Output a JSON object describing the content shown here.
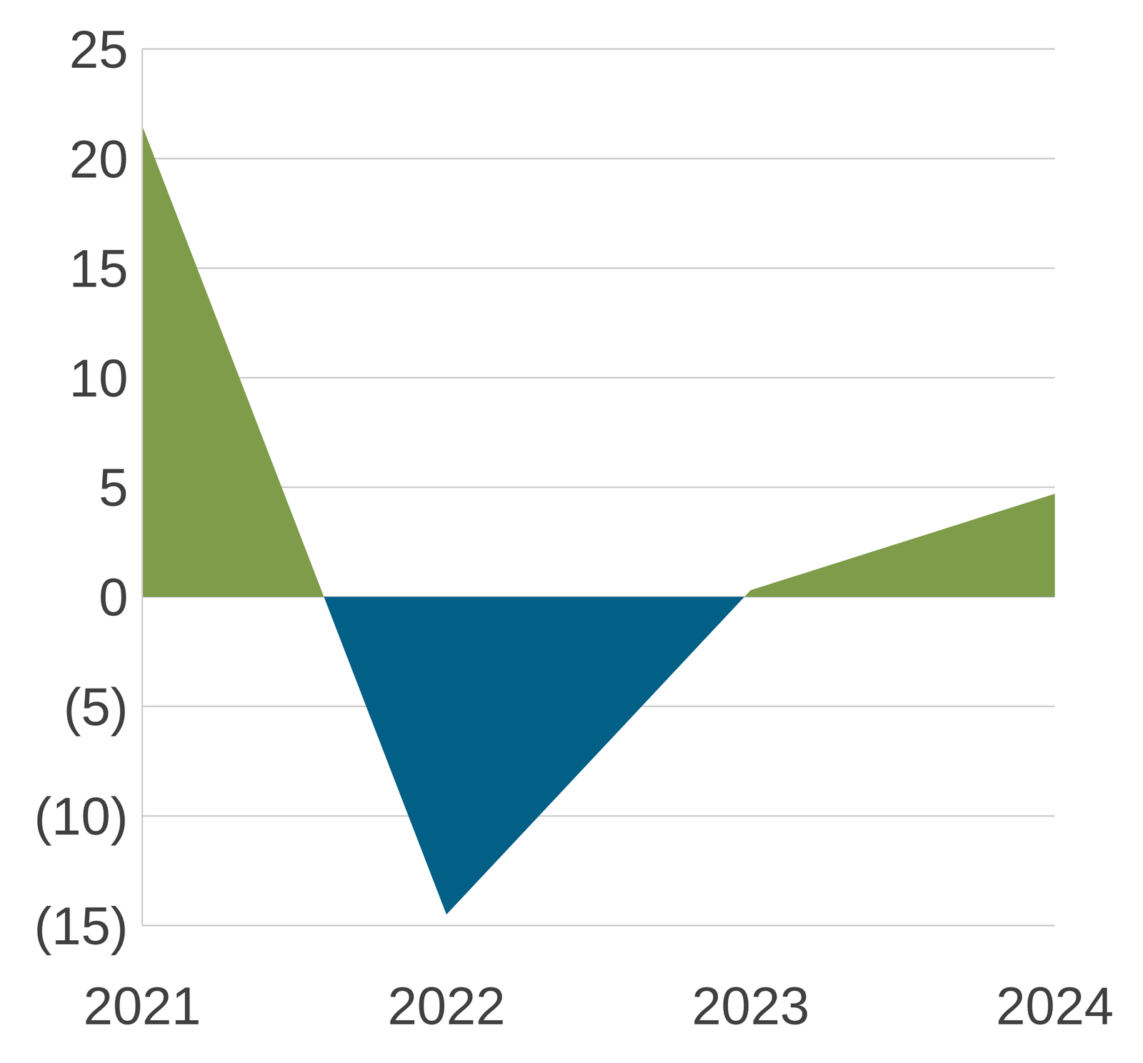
{
  "chart_data": {
    "type": "area",
    "categories": [
      "2021",
      "2022",
      "2023",
      "2024"
    ],
    "values": [
      21.5,
      -14.5,
      0.3,
      4.7
    ],
    "colors": [
      "#7f9c4b",
      "#025f86"
    ],
    "ylim": [
      -15,
      25
    ],
    "yticks": [
      {
        "value": -15,
        "label": "(15)"
      },
      {
        "value": -10,
        "label": "(10)"
      },
      {
        "value": -5,
        "label": "(5)"
      },
      0,
      5,
      10,
      15,
      20,
      25
    ],
    "grid": true
  }
}
